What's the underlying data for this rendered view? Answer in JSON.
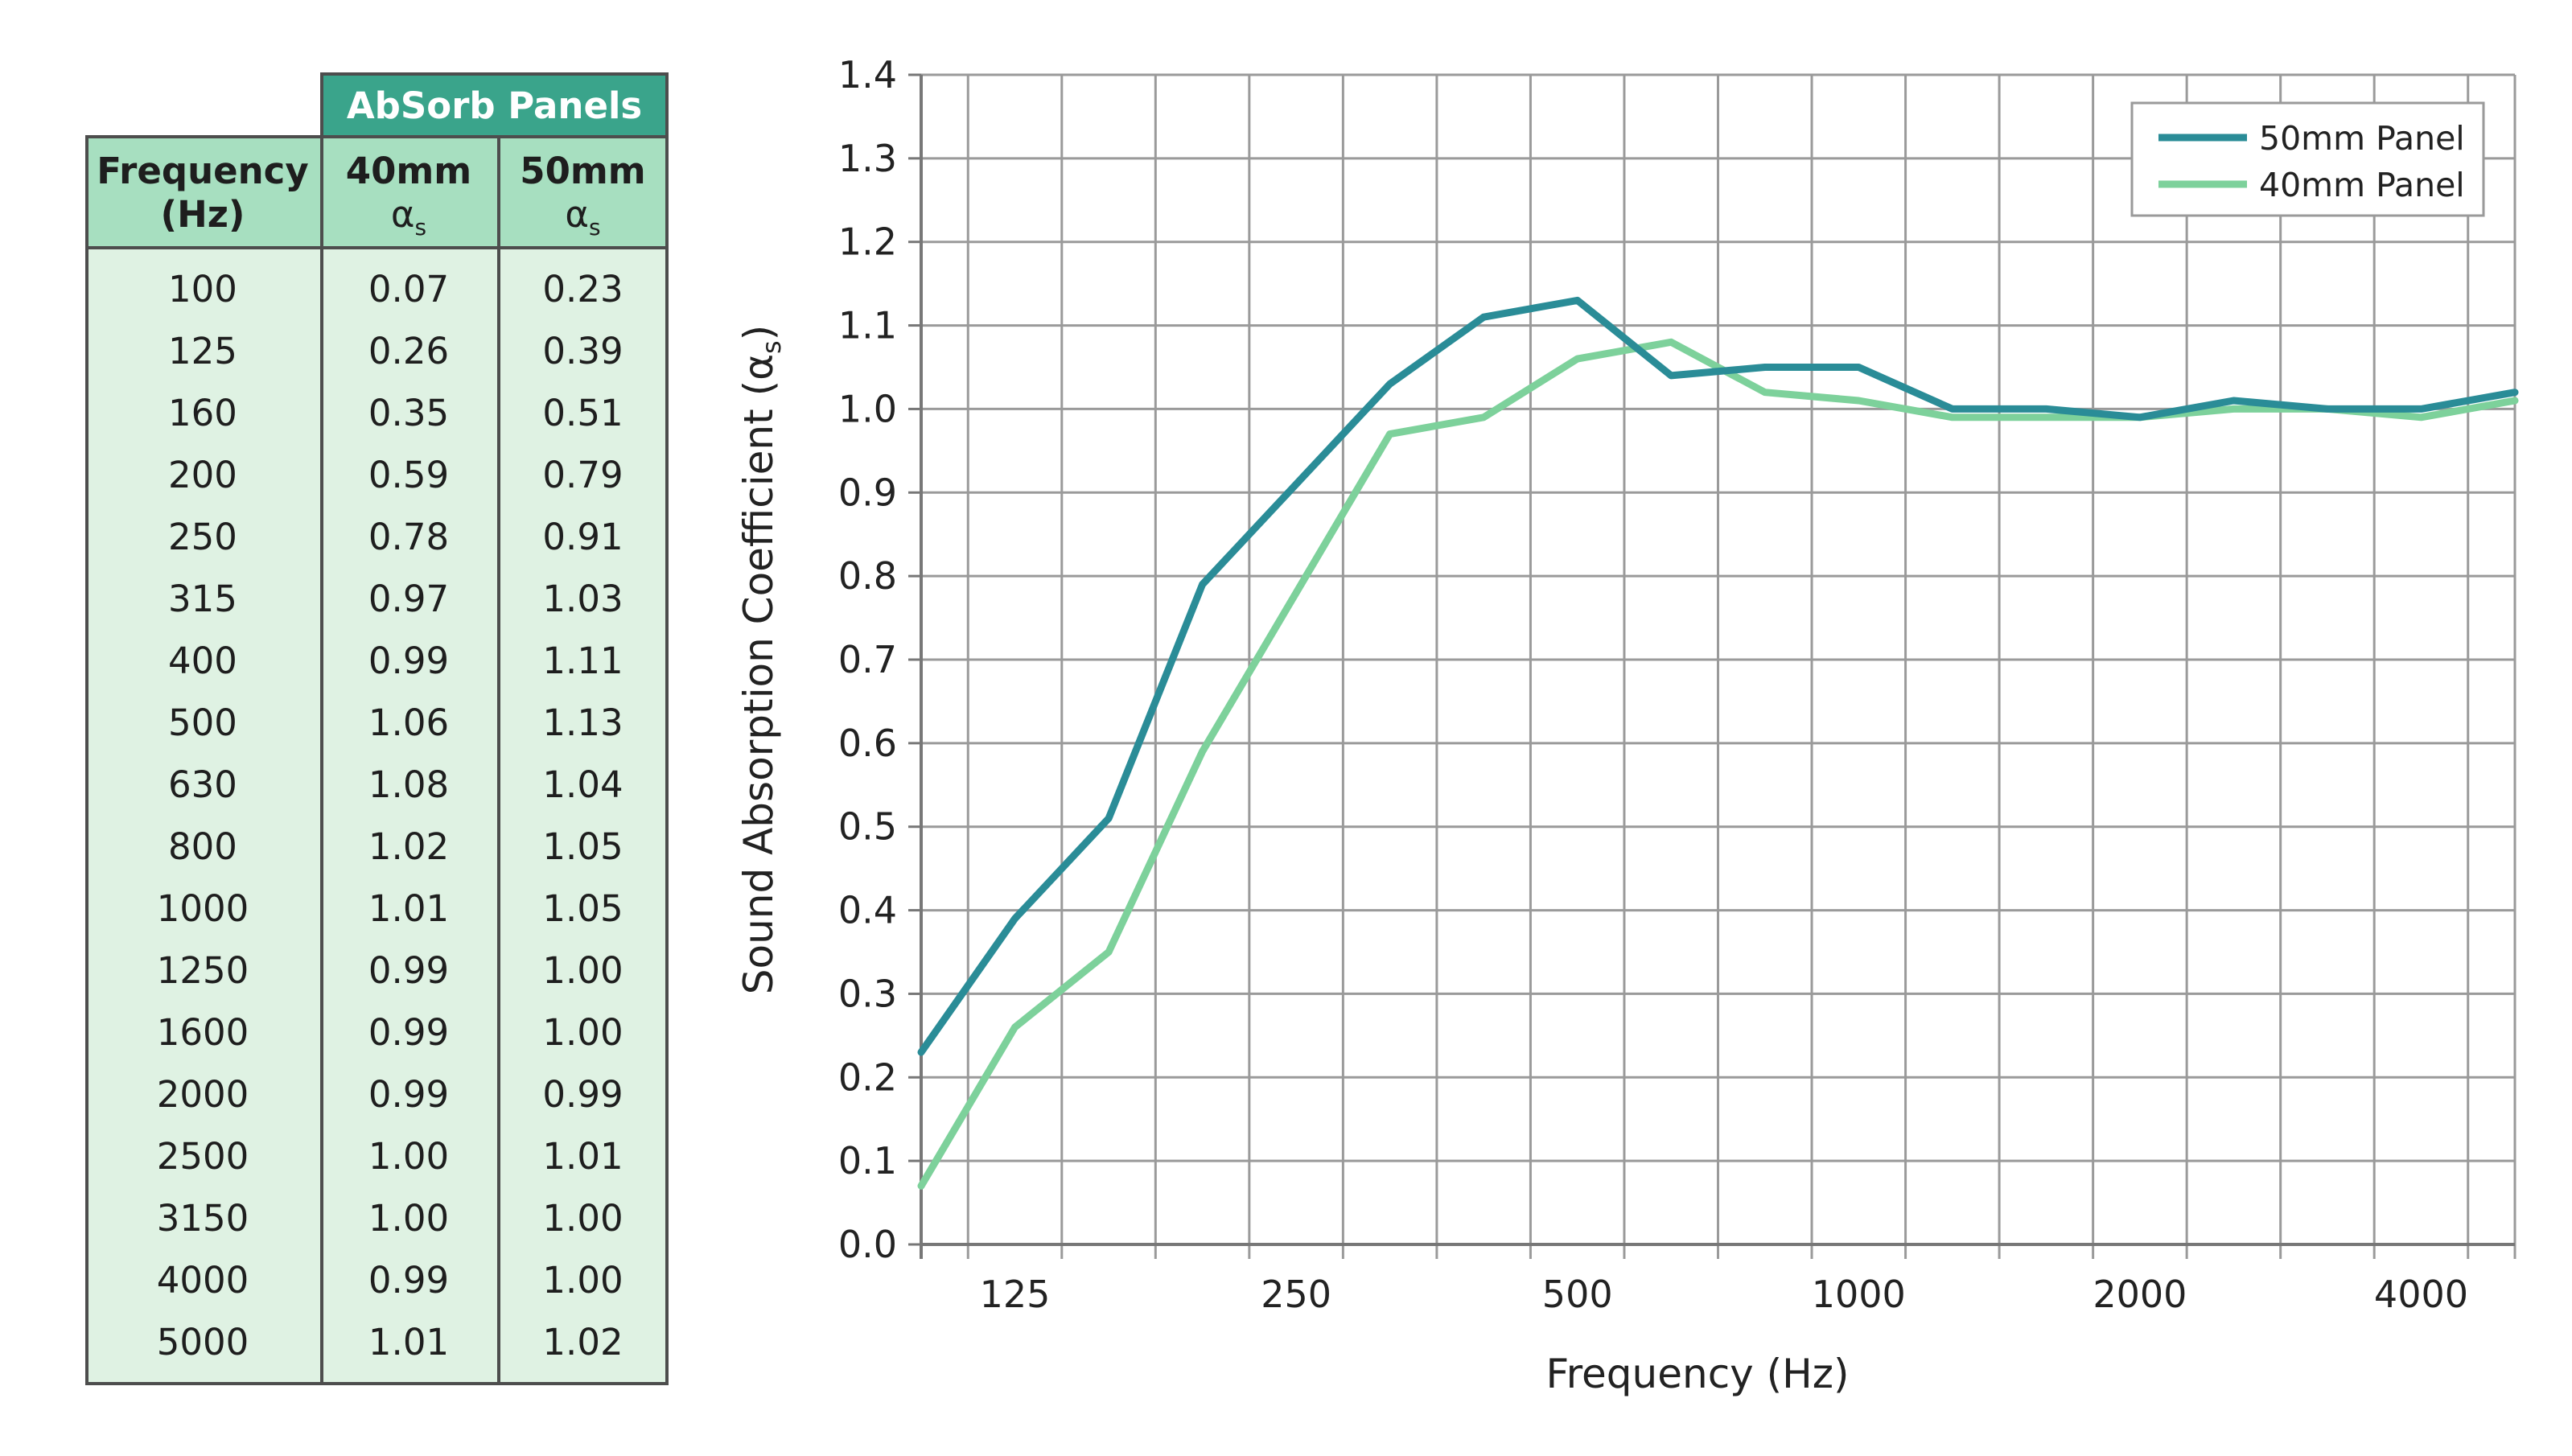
{
  "table": {
    "group_header": "AbSorb Panels",
    "col_frequency": [
      "Frequency",
      "(Hz)"
    ],
    "col_40": "40mm",
    "col_50": "50mm",
    "alpha_symbol": "α",
    "alpha_sub": "s",
    "rows": [
      {
        "f": "100",
        "p40": "0.07",
        "p50": "0.23"
      },
      {
        "f": "125",
        "p40": "0.26",
        "p50": "0.39"
      },
      {
        "f": "160",
        "p40": "0.35",
        "p50": "0.51"
      },
      {
        "f": "200",
        "p40": "0.59",
        "p50": "0.79"
      },
      {
        "f": "250",
        "p40": "0.78",
        "p50": "0.91"
      },
      {
        "f": "315",
        "p40": "0.97",
        "p50": "1.03"
      },
      {
        "f": "400",
        "p40": "0.99",
        "p50": "1.11"
      },
      {
        "f": "500",
        "p40": "1.06",
        "p50": "1.13"
      },
      {
        "f": "630",
        "p40": "1.08",
        "p50": "1.04"
      },
      {
        "f": "800",
        "p40": "1.02",
        "p50": "1.05"
      },
      {
        "f": "1000",
        "p40": "1.01",
        "p50": "1.05"
      },
      {
        "f": "1250",
        "p40": "0.99",
        "p50": "1.00"
      },
      {
        "f": "1600",
        "p40": "0.99",
        "p50": "1.00"
      },
      {
        "f": "2000",
        "p40": "0.99",
        "p50": "0.99"
      },
      {
        "f": "2500",
        "p40": "1.00",
        "p50": "1.01"
      },
      {
        "f": "3150",
        "p40": "1.00",
        "p50": "1.00"
      },
      {
        "f": "4000",
        "p40": "0.99",
        "p50": "1.00"
      },
      {
        "f": "5000",
        "p40": "1.01",
        "p50": "1.02"
      }
    ]
  },
  "chart_data": {
    "type": "line",
    "x": [
      100,
      125,
      160,
      200,
      250,
      315,
      400,
      500,
      630,
      800,
      1000,
      1250,
      1600,
      2000,
      2500,
      3150,
      4000,
      5000
    ],
    "x_tick_labels": [
      "125",
      "250",
      "500",
      "1000",
      "2000",
      "4000"
    ],
    "x_tick_values": [
      125,
      250,
      500,
      1000,
      2000,
      4000
    ],
    "xlabel": "Frequency (Hz)",
    "ylabel": "Sound Absorption Coefficient (α",
    "ylabel_sub": "s",
    "ylabel_close": ")",
    "ylim": [
      0.0,
      1.4
    ],
    "yticks": [
      "0.0",
      "0.1",
      "0.2",
      "0.3",
      "0.4",
      "0.5",
      "0.6",
      "0.7",
      "0.8",
      "0.9",
      "1.0",
      "1.1",
      "1.2",
      "1.3",
      "1.4"
    ],
    "grid": true,
    "legend_position": "top-right",
    "series": [
      {
        "name": "50mm Panel",
        "color": "#2a8c97",
        "values": [
          0.23,
          0.39,
          0.51,
          0.79,
          0.91,
          1.03,
          1.11,
          1.13,
          1.04,
          1.05,
          1.05,
          1.0,
          1.0,
          0.99,
          1.01,
          1.0,
          1.0,
          1.02
        ]
      },
      {
        "name": "40mm Panel",
        "color": "#7dd19b",
        "values": [
          0.07,
          0.26,
          0.35,
          0.59,
          0.78,
          0.97,
          0.99,
          1.06,
          1.08,
          1.02,
          1.01,
          0.99,
          0.99,
          0.99,
          1.0,
          1.0,
          0.99,
          1.01
        ]
      }
    ]
  }
}
